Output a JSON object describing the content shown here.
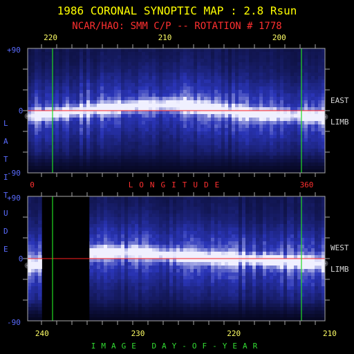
{
  "chart_data": [
    {
      "type": "heatmap",
      "title": "1986 CORONAL SYNOPTIC MAP : 2.8 Rsun",
      "subtitle": "NCAR/HAO: SMM C/P -- ROTATION # 1778",
      "panel": "east-limb",
      "side_label": [
        "EAST",
        "LIMB"
      ],
      "top_axis_ticks": [
        "220",
        "210",
        "200"
      ],
      "top_axis_tick_values": [
        220,
        210,
        200
      ],
      "bottom_axis_ticks": [
        "0",
        "360"
      ],
      "bottom_axis_tick_values": [
        0,
        360
      ],
      "bottom_axis_label": "LONGITUDE",
      "y_ticks": [
        "+90",
        "0",
        "-90"
      ],
      "ylim": [
        -90,
        90
      ],
      "xlim": [
        -6,
        384
      ],
      "markers_longitude": [
        0,
        360
      ],
      "equator_latitude": 0,
      "streamer_belt": [
        {
          "lon": -6,
          "lat": -8
        },
        {
          "lon": 40,
          "lat": -3
        },
        {
          "lon": 90,
          "lat": 3
        },
        {
          "lon": 140,
          "lat": 7
        },
        {
          "lon": 190,
          "lat": 9
        },
        {
          "lon": 240,
          "lat": 2
        },
        {
          "lon": 290,
          "lat": -5
        },
        {
          "lon": 340,
          "lat": -7
        },
        {
          "lon": 384,
          "lat": -9
        }
      ]
    },
    {
      "type": "heatmap",
      "panel": "west-limb",
      "side_label": [
        "WEST",
        "LIMB"
      ],
      "bottom_axis_ticks": [
        "240",
        "230",
        "220",
        "210"
      ],
      "bottom_axis_tick_values": [
        240,
        230,
        220,
        210
      ],
      "bottom_axis_label": "IMAGE DAY-OF-YEAR",
      "y_ticks": [
        "+90",
        "0",
        "-90"
      ],
      "ylim": [
        -90,
        90
      ],
      "xlim": [
        -6,
        384
      ],
      "markers_longitude": [
        0,
        360
      ],
      "equator_latitude": 0,
      "data_gap_longitude": [
        13,
        75
      ],
      "streamer_belt": [
        {
          "lon": -6,
          "lat": -10
        },
        {
          "lon": 13,
          "lat": -8
        },
        {
          "lon": 75,
          "lat": 8
        },
        {
          "lon": 130,
          "lat": 9
        },
        {
          "lon": 180,
          "lat": 5
        },
        {
          "lon": 230,
          "lat": 1
        },
        {
          "lon": 280,
          "lat": -1
        },
        {
          "lon": 330,
          "lat": -4
        },
        {
          "lon": 384,
          "lat": -7
        }
      ]
    }
  ],
  "y_axis_label": "LATITUDE",
  "colors": {
    "title": "#ffff00",
    "subtitle": "#ff3030",
    "axis_ticks": "#ffff66",
    "lat_label": "#5a6cff",
    "longitude_label": "#ff3030",
    "doy_label": "#33dd33",
    "side_label": "#d8d8d8",
    "marker_line": "#22dd22",
    "equator_line": "#ff2020",
    "frame": "#aaaaaa",
    "map_dark": "#05061e",
    "map_mid": "#2a35b8",
    "map_bright": "#f0f0ff"
  }
}
